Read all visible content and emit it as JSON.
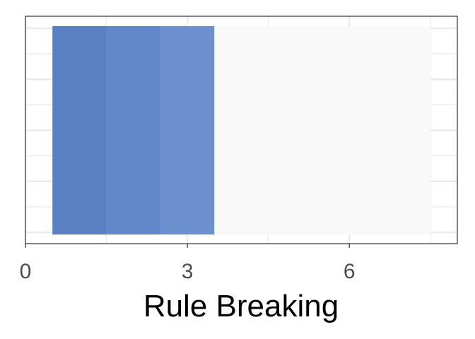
{
  "chart_data": {
    "type": "bar",
    "orientation": "horizontal",
    "stacked": true,
    "title": "",
    "xlabel": "Rule Breaking",
    "ylabel": "",
    "xlim": [
      0,
      8
    ],
    "x_ticks": [
      0,
      3,
      6
    ],
    "grid": true,
    "legend": "none",
    "segments": [
      {
        "start": 0.5,
        "end": 1.5,
        "color": "#5a80c4"
      },
      {
        "start": 1.5,
        "end": 2.5,
        "color": "#6087ca"
      },
      {
        "start": 2.5,
        "end": 3.5,
        "color": "#6c91ce"
      },
      {
        "start": 3.5,
        "end": 7.5,
        "color": "#f9f9f9"
      }
    ]
  }
}
